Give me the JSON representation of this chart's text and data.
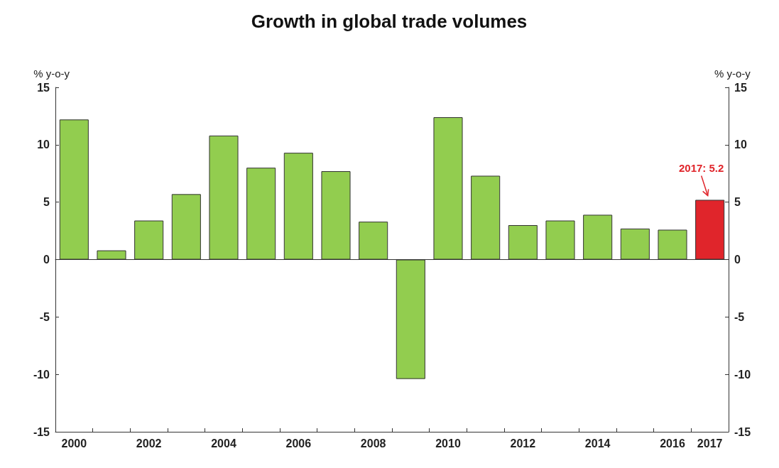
{
  "chart_data": {
    "type": "bar",
    "title": "Growth in global trade volumes",
    "ylabel": "% y-o-y",
    "y2label": "% y-o-y",
    "categories": [
      "2000",
      null,
      "2002",
      null,
      "2004",
      null,
      "2006",
      null,
      "2008",
      null,
      "2010",
      null,
      "2012",
      null,
      "2014",
      null,
      "2016",
      "2017"
    ],
    "values": [
      12.2,
      0.8,
      3.4,
      5.7,
      10.8,
      8.0,
      9.3,
      7.7,
      3.3,
      -10.4,
      12.4,
      7.3,
      3.0,
      3.4,
      3.9,
      2.7,
      2.6,
      5.2
    ],
    "colors": [
      "#92cd4f",
      "#92cd4f",
      "#92cd4f",
      "#92cd4f",
      "#92cd4f",
      "#92cd4f",
      "#92cd4f",
      "#92cd4f",
      "#92cd4f",
      "#92cd4f",
      "#92cd4f",
      "#92cd4f",
      "#92cd4f",
      "#92cd4f",
      "#92cd4f",
      "#92cd4f",
      "#92cd4f",
      "#e0252b"
    ],
    "ylim": [
      -15,
      15
    ],
    "yticks": [
      -15,
      -10,
      -5,
      0,
      5,
      10,
      15
    ],
    "y2lim": [
      -15,
      15
    ],
    "y2ticks": [
      -15,
      -10,
      -5,
      0,
      5,
      10,
      15
    ],
    "annotations": [
      {
        "text": "2017: 5.2",
        "x": "2017",
        "y": 5.2
      }
    ]
  }
}
